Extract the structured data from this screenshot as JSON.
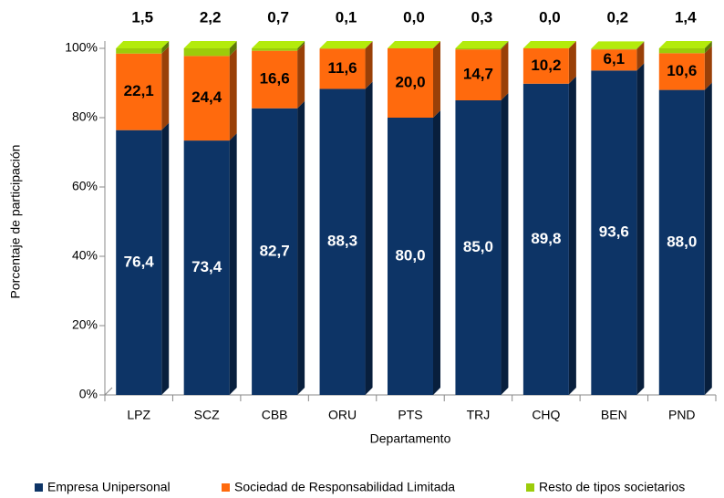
{
  "chart_data": {
    "type": "stacked_bar_3d",
    "y_label": "Porcentaje de participación",
    "x_label": "Departamento",
    "categories": [
      "LPZ",
      "SCZ",
      "CBB",
      "ORU",
      "PTS",
      "TRJ",
      "CHQ",
      "BEN",
      "PND"
    ],
    "series": [
      {
        "name": "Empresa Unipersonal",
        "color": "#0d3466",
        "values": [
          76.4,
          73.4,
          82.7,
          88.3,
          80.0,
          85.0,
          89.8,
          93.6,
          88.0
        ],
        "value_labels": [
          "76,4",
          "73,4",
          "82,7",
          "88,3",
          "80,0",
          "85,0",
          "89,8",
          "93,6",
          "88,0"
        ]
      },
      {
        "name": "Sociedad de Responsabilidad Limitada",
        "color": "#ff6a0d",
        "values": [
          22.1,
          24.4,
          16.6,
          11.6,
          20.0,
          14.7,
          10.2,
          6.1,
          10.6
        ],
        "value_labels": [
          "22,1",
          "24,4",
          "16,6",
          "11,6",
          "20,0",
          "14,7",
          "10,2",
          "6,1",
          "10,6"
        ]
      },
      {
        "name": "Resto de tipos societarios",
        "color": "#9ccc0a",
        "values": [
          1.5,
          2.2,
          0.7,
          0.1,
          0.0,
          0.3,
          0.0,
          0.2,
          1.4
        ],
        "value_labels": [
          "1,5",
          "2,2",
          "0,7",
          "0,1",
          "0,0",
          "0,3",
          "0,0",
          "0,2",
          "1,4"
        ]
      }
    ],
    "ylim": [
      0,
      100
    ],
    "yticks": [
      {
        "value": 0,
        "label": "0%"
      },
      {
        "value": 20,
        "label": "20%"
      },
      {
        "value": 40,
        "label": "40%"
      },
      {
        "value": 60,
        "label": "60%"
      },
      {
        "value": 80,
        "label": "80%"
      },
      {
        "value": 100,
        "label": "100%"
      }
    ],
    "legend": "bottom"
  }
}
